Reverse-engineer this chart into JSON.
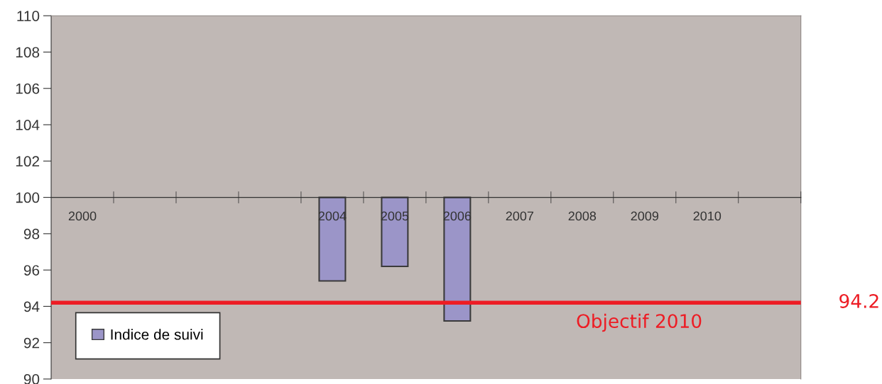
{
  "chart_data": {
    "type": "bar",
    "categories": [
      "2000",
      null,
      null,
      null,
      "2004",
      "2005",
      "2006",
      "2007",
      "2008",
      "2009",
      "2010",
      null
    ],
    "series": [
      {
        "name": "Indice de suivi",
        "color": "#9b95c8",
        "values": [
          null,
          null,
          null,
          null,
          -4.6,
          -3.8,
          -6.8,
          null,
          null,
          null,
          null,
          null
        ],
        "base": [
          null,
          null,
          null,
          null,
          100,
          100,
          100,
          null,
          null,
          null,
          null,
          null
        ]
      }
    ],
    "ylim": [
      90,
      110
    ],
    "yticks": [
      90,
      92,
      94,
      96,
      98,
      100,
      102,
      104,
      106,
      108,
      110
    ],
    "ref_lines": [
      {
        "axis": "y",
        "value": 94.2,
        "label": "94.2",
        "color": "#ed1c24"
      }
    ],
    "annotations": [
      "Objectif 2010"
    ],
    "legend": "bottom left",
    "grid": false
  }
}
